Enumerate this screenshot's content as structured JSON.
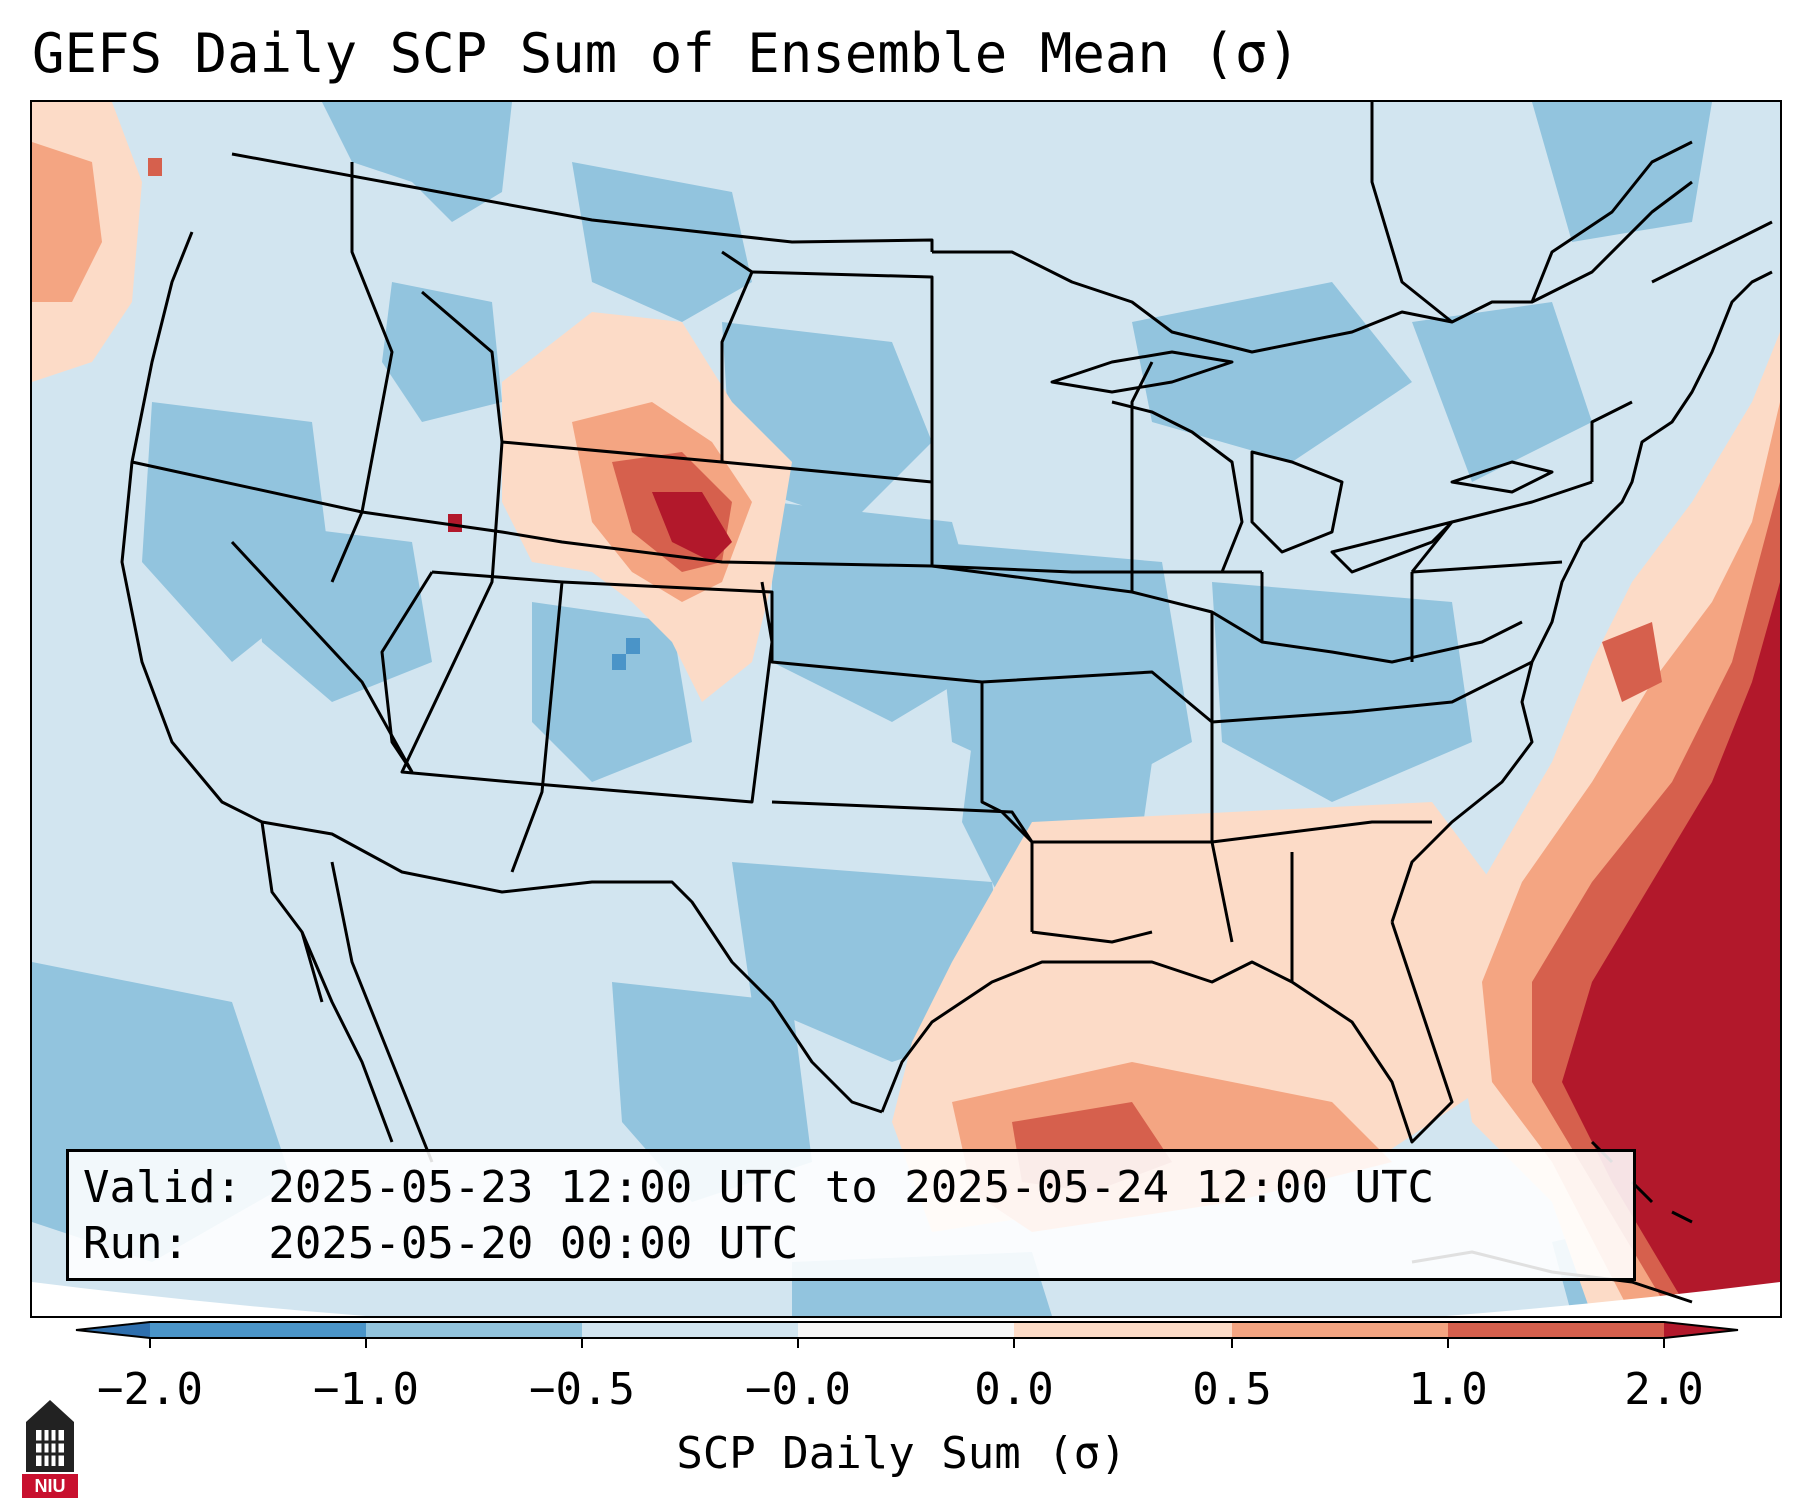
{
  "title": "GEFS Daily SCP Sum of Ensemble Mean (σ)",
  "info": {
    "valid_line": "Valid: 2025-05-23 12:00 UTC to 2025-05-24 12:00 UTC",
    "run_line": "Run:   2025-05-20 00:00 UTC"
  },
  "colorbar": {
    "label": "SCP Daily Sum (σ)",
    "ticks": [
      "−2.0",
      "−1.0",
      "−0.5",
      "−0.0",
      "0.0",
      "0.5",
      "1.0",
      "2.0"
    ],
    "bin_colors": [
      "#2e6fae",
      "#4a94c8",
      "#92c4de",
      "#d2e5f0",
      "#f7f7f7",
      "#fcdbc7",
      "#f4a582",
      "#d6604d",
      "#b2182b"
    ]
  },
  "map": {
    "region": "Contiguous United States",
    "field": "SCP daily sum anomaly (σ)",
    "background_color": "#d2e5f0",
    "border_color": "#000000"
  },
  "logo": {
    "icon": "niu-logo-icon",
    "text": "NIU",
    "color": "#c8102e"
  }
}
